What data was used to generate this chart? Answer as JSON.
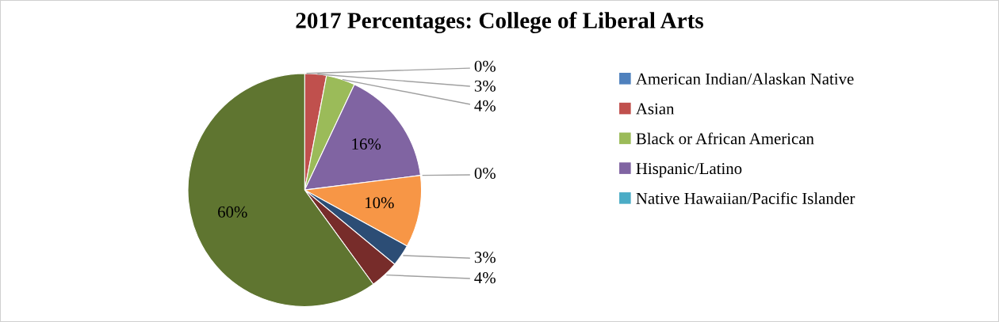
{
  "chart_data": {
    "type": "pie",
    "title": "2017 Percentages: College of Liberal Arts",
    "categories": [
      "American Indian/Alaskan Native",
      "Asian",
      "Black or African American",
      "Hispanic/Latino",
      "Native Hawaiian/Pacific Islander",
      null,
      null,
      null,
      null
    ],
    "values": [
      0,
      3,
      4,
      16,
      0,
      10,
      3,
      4,
      60
    ],
    "value_labels": [
      "0%",
      "3%",
      "4%",
      "16%",
      "0%",
      "10%",
      "3%",
      "4%",
      "60%"
    ],
    "colors": [
      "#4f81bd",
      "#c0504d",
      "#9bbb59",
      "#8064a2",
      "#4bacc6",
      "#f79646",
      "#2c4d75",
      "#772c2a",
      "#5f7530"
    ],
    "legend": "right"
  }
}
